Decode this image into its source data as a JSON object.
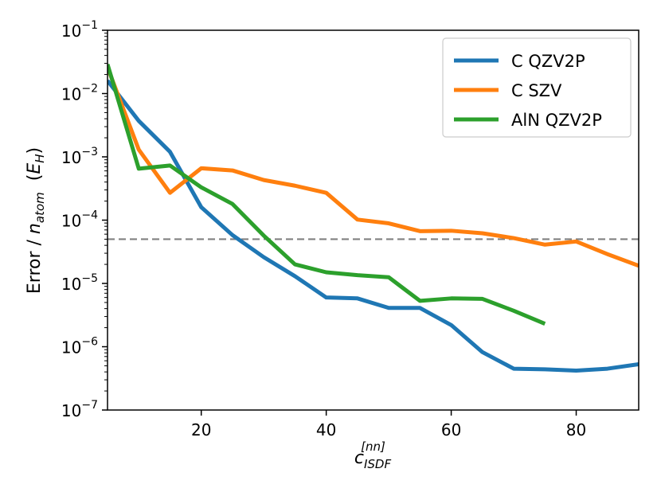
{
  "chart_data": {
    "type": "line",
    "title": "",
    "xlabel": {
      "base": "c",
      "sub": "ISDF",
      "sup": "[nn]"
    },
    "ylabel": {
      "prefix": "Error / ",
      "n": "n",
      "nsub": "atom",
      "unit_open": "  (",
      "unit_E": "E",
      "unit_sub": "H",
      "unit_close": ")"
    },
    "xlim": [
      5,
      90
    ],
    "ylim_exp": [
      -7,
      -1
    ],
    "yscale": "log",
    "x_ticks": [
      20,
      40,
      60,
      80
    ],
    "x_tick_labels": [
      "20",
      "40",
      "60",
      "80"
    ],
    "y_ticks_exp": [
      -7,
      -6,
      -5,
      -4,
      -3,
      -2,
      -1
    ],
    "y_tick_labels": [
      {
        "base": "10",
        "exp": "−7"
      },
      {
        "base": "10",
        "exp": "−6"
      },
      {
        "base": "10",
        "exp": "−5"
      },
      {
        "base": "10",
        "exp": "−4"
      },
      {
        "base": "10",
        "exp": "−3"
      },
      {
        "base": "10",
        "exp": "−2"
      },
      {
        "base": "10",
        "exp": "−1"
      }
    ],
    "threshold": 5e-05,
    "legend_position": "upper-right",
    "series": [
      {
        "name": "C QZV2P",
        "color": "#1f77b4",
        "x": [
          5,
          10,
          15,
          20,
          25,
          30,
          35,
          40,
          45,
          50,
          55,
          60,
          65,
          70,
          75,
          80,
          85,
          90
        ],
        "y": [
          0.016,
          0.0037,
          0.0012,
          0.00016,
          5.8e-05,
          2.6e-05,
          1.3e-05,
          6e-06,
          5.8e-06,
          4.1e-06,
          4.1e-06,
          2.2e-06,
          8.2e-07,
          4.5e-07,
          4.4e-07,
          4.2e-07,
          4.5e-07,
          5.3e-07
        ]
      },
      {
        "name": "C SZV",
        "color": "#ff7f0e",
        "x": [
          5,
          10,
          15,
          20,
          25,
          30,
          35,
          40,
          45,
          50,
          55,
          60,
          65,
          70,
          75,
          80,
          85,
          90
        ],
        "y": [
          0.026,
          0.0013,
          0.00027,
          0.00066,
          0.00061,
          0.00043,
          0.00035,
          0.00027,
          0.000102,
          8.9e-05,
          6.7e-05,
          6.8e-05,
          6.2e-05,
          5.2e-05,
          4.1e-05,
          4.6e-05,
          2.9e-05,
          1.9e-05
        ]
      },
      {
        "name": "AlN QZV2P",
        "color": "#2ca02c",
        "x": [
          5,
          10,
          15,
          20,
          25,
          30,
          35,
          40,
          45,
          50,
          55,
          60,
          65,
          70,
          75
        ],
        "y": [
          0.029,
          0.00065,
          0.00073,
          0.00033,
          0.00018,
          5.7e-05,
          2e-05,
          1.5e-05,
          1.35e-05,
          1.25e-05,
          5.3e-06,
          5.8e-06,
          5.7e-06,
          3.7e-06,
          2.3e-06
        ]
      }
    ]
  }
}
